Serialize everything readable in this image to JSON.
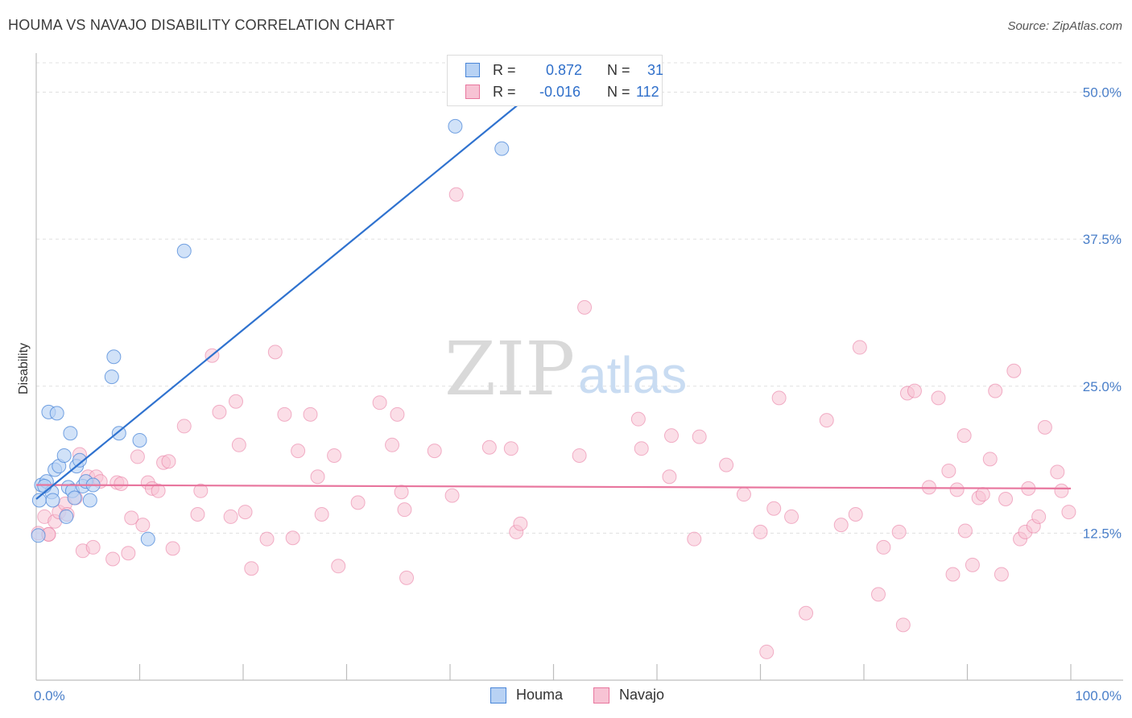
{
  "title": "HOUMA VS NAVAJO DISABILITY CORRELATION CHART",
  "source": "Source: ZipAtlas.com",
  "watermark": {
    "zip": "ZIP",
    "atlas": "atlas"
  },
  "colors": {
    "houma": "#4a86d8",
    "houma_fill": "#b8d2f4",
    "navajo": "#e8769e",
    "navajo_fill": "#f7c3d4",
    "tick_text": "#4a7fc9",
    "grid": "#e0e0e0"
  },
  "legend": {
    "houma": {
      "r_label": "R =",
      "r_value": "0.872",
      "n_label": "N =",
      "n_value": "31"
    },
    "navajo": {
      "r_label": "R =",
      "r_value": "-0.016",
      "n_label": "N =",
      "n_value": "112"
    }
  },
  "bottom_legend": {
    "houma": "Houma",
    "navajo": "Navajo"
  },
  "chart_data": {
    "type": "scatter",
    "xlabel": "",
    "ylabel": "Disability",
    "xlim": [
      0,
      100
    ],
    "ylim": [
      0,
      52.5
    ],
    "x_tick_labels": {
      "min": "0.0%",
      "max": "100.0%"
    },
    "y_ticks": [
      12.5,
      25.0,
      37.5,
      50.0
    ],
    "y_tick_labels": [
      "12.5%",
      "25.0%",
      "37.5%",
      "50.0%"
    ],
    "grid": true,
    "series": [
      {
        "name": "Houma",
        "trend": {
          "x": [
            0.0,
            47.5
          ],
          "y": [
            15.4,
            49.6
          ]
        },
        "points": [
          [
            0.2,
            12.3
          ],
          [
            0.3,
            15.3
          ],
          [
            0.5,
            16.6
          ],
          [
            1.0,
            16.9
          ],
          [
            1.2,
            22.8
          ],
          [
            1.5,
            16.0
          ],
          [
            1.6,
            15.3
          ],
          [
            1.8,
            17.9
          ],
          [
            2.0,
            22.7
          ],
          [
            2.2,
            18.2
          ],
          [
            2.7,
            19.1
          ],
          [
            2.9,
            13.9
          ],
          [
            3.1,
            16.4
          ],
          [
            3.3,
            21.0
          ],
          [
            3.5,
            16.1
          ],
          [
            3.7,
            15.5
          ],
          [
            3.9,
            18.2
          ],
          [
            4.2,
            18.7
          ],
          [
            4.5,
            16.5
          ],
          [
            4.8,
            16.9
          ],
          [
            5.2,
            15.3
          ],
          [
            5.5,
            16.6
          ],
          [
            7.3,
            25.8
          ],
          [
            7.5,
            27.5
          ],
          [
            8.0,
            21.0
          ],
          [
            10.0,
            20.4
          ],
          [
            10.8,
            12.0
          ],
          [
            14.3,
            36.5
          ],
          [
            40.5,
            47.1
          ],
          [
            45.0,
            45.2
          ],
          [
            0.8,
            16.5
          ]
        ]
      },
      {
        "name": "Navajo",
        "trend": {
          "x": [
            0.0,
            100.0
          ],
          "y": [
            16.6,
            16.3
          ]
        },
        "points": [
          [
            0.2,
            12.5
          ],
          [
            0.8,
            13.9
          ],
          [
            1.2,
            12.4
          ],
          [
            1.8,
            13.5
          ],
          [
            2.2,
            14.3
          ],
          [
            2.8,
            15.0
          ],
          [
            3.0,
            14.1
          ],
          [
            3.8,
            15.5
          ],
          [
            4.2,
            19.2
          ],
          [
            4.5,
            11.0
          ],
          [
            5.0,
            17.3
          ],
          [
            5.5,
            11.3
          ],
          [
            5.8,
            17.3
          ],
          [
            6.2,
            16.9
          ],
          [
            7.4,
            10.3
          ],
          [
            7.8,
            16.8
          ],
          [
            8.2,
            16.7
          ],
          [
            8.9,
            10.8
          ],
          [
            9.2,
            13.8
          ],
          [
            9.8,
            19.0
          ],
          [
            10.3,
            13.2
          ],
          [
            10.8,
            16.8
          ],
          [
            11.2,
            16.3
          ],
          [
            11.8,
            16.1
          ],
          [
            12.3,
            18.5
          ],
          [
            12.8,
            18.6
          ],
          [
            13.2,
            11.2
          ],
          [
            14.3,
            21.6
          ],
          [
            15.6,
            14.1
          ],
          [
            15.9,
            16.1
          ],
          [
            17.0,
            27.6
          ],
          [
            17.7,
            22.8
          ],
          [
            18.8,
            13.9
          ],
          [
            19.3,
            23.7
          ],
          [
            19.6,
            20.0
          ],
          [
            20.2,
            14.3
          ],
          [
            20.8,
            9.5
          ],
          [
            22.3,
            12.0
          ],
          [
            23.1,
            27.9
          ],
          [
            24.0,
            22.6
          ],
          [
            24.8,
            12.1
          ],
          [
            25.3,
            19.5
          ],
          [
            26.5,
            22.6
          ],
          [
            27.2,
            17.3
          ],
          [
            27.6,
            14.1
          ],
          [
            28.8,
            19.1
          ],
          [
            29.2,
            9.7
          ],
          [
            31.1,
            15.1
          ],
          [
            33.2,
            23.6
          ],
          [
            34.4,
            20.0
          ],
          [
            34.9,
            22.6
          ],
          [
            35.3,
            16.0
          ],
          [
            35.6,
            14.5
          ],
          [
            35.8,
            8.7
          ],
          [
            38.5,
            19.5
          ],
          [
            40.2,
            15.7
          ],
          [
            40.6,
            41.3
          ],
          [
            43.8,
            19.8
          ],
          [
            45.9,
            19.7
          ],
          [
            46.4,
            12.6
          ],
          [
            46.8,
            13.3
          ],
          [
            52.5,
            19.1
          ],
          [
            53.0,
            31.7
          ],
          [
            58.2,
            22.2
          ],
          [
            58.5,
            19.7
          ],
          [
            61.2,
            17.3
          ],
          [
            61.4,
            20.8
          ],
          [
            63.6,
            12.0
          ],
          [
            64.1,
            20.7
          ],
          [
            66.7,
            18.3
          ],
          [
            68.4,
            15.8
          ],
          [
            70.0,
            12.6
          ],
          [
            70.6,
            2.4
          ],
          [
            71.3,
            14.6
          ],
          [
            71.8,
            24.0
          ],
          [
            73.0,
            13.9
          ],
          [
            74.4,
            5.7
          ],
          [
            76.4,
            22.1
          ],
          [
            77.8,
            13.2
          ],
          [
            79.2,
            14.1
          ],
          [
            79.6,
            28.3
          ],
          [
            81.4,
            7.3
          ],
          [
            81.9,
            11.3
          ],
          [
            83.4,
            12.6
          ],
          [
            83.8,
            4.7
          ],
          [
            84.2,
            24.4
          ],
          [
            84.9,
            24.6
          ],
          [
            86.3,
            16.4
          ],
          [
            87.2,
            24.0
          ],
          [
            88.2,
            17.8
          ],
          [
            88.6,
            9.0
          ],
          [
            89.0,
            16.2
          ],
          [
            89.7,
            20.8
          ],
          [
            89.8,
            12.7
          ],
          [
            90.5,
            9.8
          ],
          [
            91.1,
            15.5
          ],
          [
            91.5,
            15.8
          ],
          [
            92.2,
            18.8
          ],
          [
            92.7,
            24.6
          ],
          [
            93.3,
            9.0
          ],
          [
            93.7,
            15.4
          ],
          [
            94.5,
            26.3
          ],
          [
            95.1,
            12.0
          ],
          [
            95.6,
            12.6
          ],
          [
            95.9,
            16.3
          ],
          [
            96.4,
            13.1
          ],
          [
            96.9,
            13.9
          ],
          [
            97.5,
            21.5
          ],
          [
            98.7,
            17.7
          ],
          [
            99.1,
            16.1
          ],
          [
            99.8,
            14.3
          ],
          [
            1.2,
            12.4
          ]
        ]
      }
    ]
  }
}
